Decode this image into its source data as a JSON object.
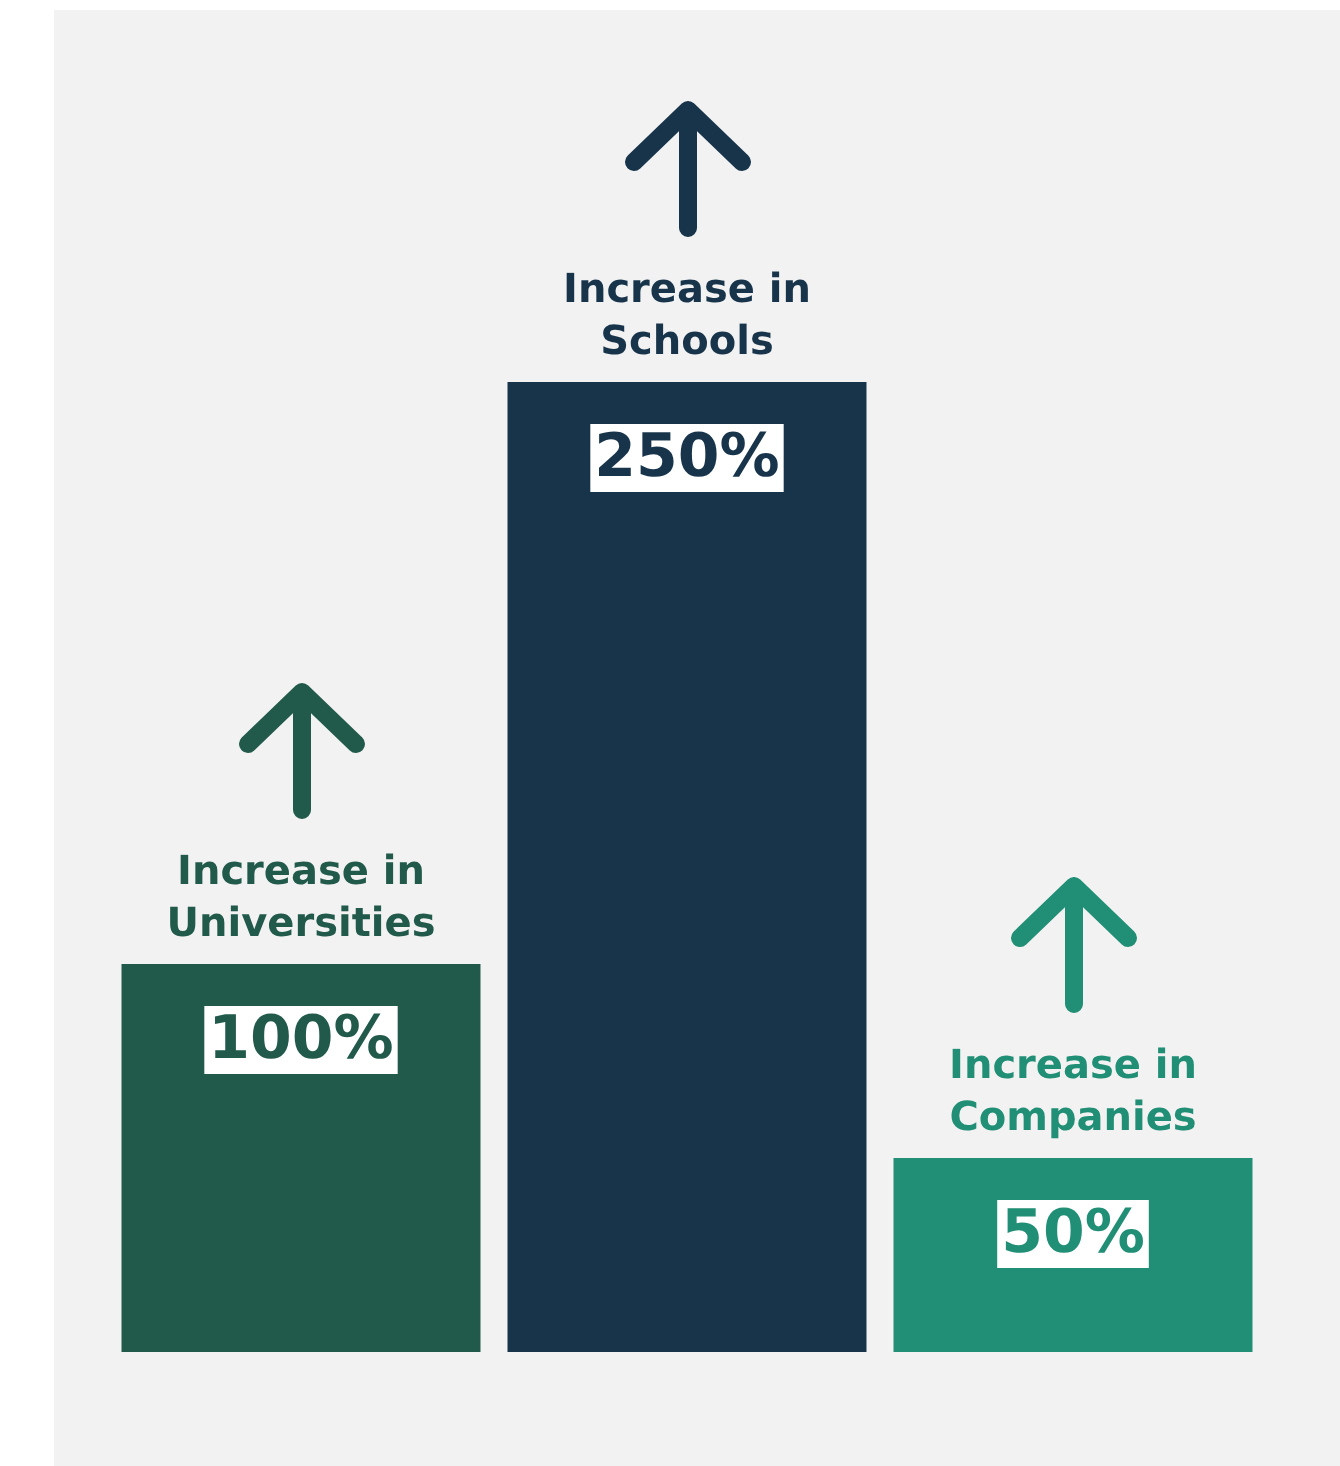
{
  "chart_data": {
    "type": "bar",
    "categories": [
      "Increase in Universities",
      "Increase in Schools",
      "Increase in Companies"
    ],
    "values": [
      100,
      250,
      50
    ],
    "colors": [
      "#215a4a",
      "#17344b",
      "#218f75"
    ],
    "value_labels": [
      "100%",
      "250%",
      "50%"
    ]
  }
}
